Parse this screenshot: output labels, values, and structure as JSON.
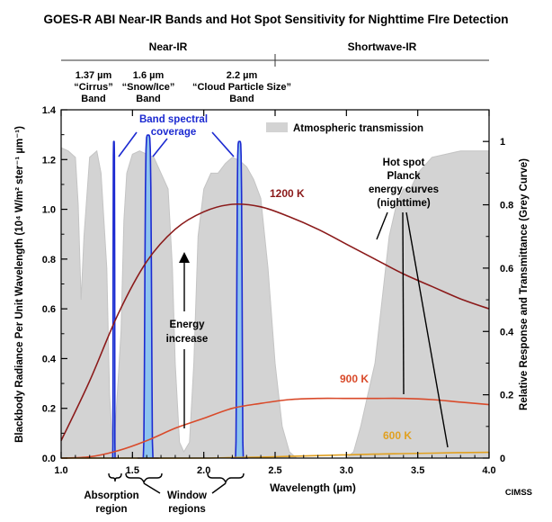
{
  "chart_data": {
    "type": "line",
    "title": "GOES-R ABI Near-IR Bands and Hot Spot Sensitivity for Nighttime FIre Detection",
    "xlabel": "Wavelength (µm)",
    "ylabel": "Blackbody Radiance Per Unit Wavelength (10⁴ W/m² ster⁻¹ µm⁻¹)",
    "y2label": "Relative Response and Transmittance (Grey Curve)",
    "xlim": [
      1.0,
      4.0
    ],
    "ylim": [
      0,
      1.4
    ],
    "y2lim": [
      0,
      1.1
    ],
    "x_ticks": [
      "1.0",
      "1.5",
      "2.0",
      "2.5",
      "3.0",
      "3.5",
      "4.0"
    ],
    "y_ticks": [
      "0.0",
      "0.2",
      "0.4",
      "0.6",
      "0.8",
      "1.0",
      "1.2",
      "1.4"
    ],
    "y2_ticks": [
      "0",
      "0.2",
      "0.4",
      "0.6",
      "0.8",
      "1"
    ],
    "regions": [
      {
        "label": "Near-IR",
        "x_range": [
          1.0,
          2.5
        ]
      },
      {
        "label": "Shortwave-IR",
        "x_range": [
          2.5,
          4.0
        ]
      }
    ],
    "bands": [
      {
        "center": 1.37,
        "label_value": "1.37 µm",
        "label_name": "“Cirrus”",
        "label_band": "Band",
        "peak": 1.0,
        "half_width": 0.006
      },
      {
        "center": 1.61,
        "label_value": "1.6 µm",
        "label_name": "“Snow/Ice”",
        "label_band": "Band",
        "peak": 1.02,
        "half_width": 0.025
      },
      {
        "center": 2.25,
        "label_value": "2.2 µm",
        "label_name": "“Cloud Particle Size”",
        "label_band": "Band",
        "peak": 1.0,
        "half_width": 0.02
      }
    ],
    "series": [
      {
        "name": "1200 K",
        "color": "#8b1a1a",
        "x": [
          1.0,
          1.2,
          1.4,
          1.6,
          1.8,
          2.0,
          2.2,
          2.4,
          2.6,
          2.8,
          3.0,
          3.2,
          3.4,
          3.6,
          3.8,
          4.0
        ],
        "values": [
          0.07,
          0.31,
          0.58,
          0.79,
          0.92,
          0.99,
          1.02,
          1.01,
          0.97,
          0.92,
          0.86,
          0.8,
          0.74,
          0.69,
          0.64,
          0.6
        ]
      },
      {
        "name": "900 K",
        "color": "#d94a2a",
        "x": [
          1.0,
          1.2,
          1.4,
          1.6,
          1.8,
          2.0,
          2.2,
          2.4,
          2.6,
          2.8,
          3.0,
          3.2,
          3.4,
          3.6,
          3.8,
          4.0
        ],
        "values": [
          0.0,
          0.005,
          0.03,
          0.07,
          0.12,
          0.16,
          0.2,
          0.22,
          0.235,
          0.24,
          0.24,
          0.24,
          0.24,
          0.235,
          0.225,
          0.215
        ]
      },
      {
        "name": "600 K",
        "color": "#e0a020",
        "x": [
          1.0,
          1.5,
          2.0,
          2.2,
          2.4,
          2.6,
          2.8,
          3.0,
          3.2,
          3.4,
          3.6,
          3.8,
          4.0
        ],
        "values": [
          0.0,
          0.0,
          0.0,
          0.002,
          0.004,
          0.007,
          0.01,
          0.013,
          0.016,
          0.018,
          0.02,
          0.022,
          0.023
        ]
      }
    ],
    "transmission": {
      "name": "Atmospheric transmission",
      "x": [
        1.0,
        1.05,
        1.1,
        1.12,
        1.14,
        1.16,
        1.2,
        1.25,
        1.28,
        1.32,
        1.34,
        1.36,
        1.38,
        1.42,
        1.44,
        1.46,
        1.5,
        1.55,
        1.6,
        1.65,
        1.7,
        1.75,
        1.78,
        1.8,
        1.83,
        1.86,
        1.9,
        1.93,
        1.96,
        2.0,
        2.05,
        2.1,
        2.15,
        2.2,
        2.25,
        2.3,
        2.35,
        2.4,
        2.45,
        2.5,
        2.55,
        2.6,
        2.65,
        2.7,
        2.75,
        2.8,
        2.85,
        2.9,
        2.95,
        3.0,
        3.05,
        3.1,
        3.15,
        3.2,
        3.25,
        3.3,
        3.35,
        3.4,
        3.45,
        3.5,
        3.6,
        3.7,
        3.8,
        3.9,
        4.0
      ],
      "values": [
        0.98,
        0.97,
        0.95,
        0.8,
        0.5,
        0.7,
        0.95,
        0.97,
        0.9,
        0.6,
        0.2,
        0.05,
        0.1,
        0.4,
        0.75,
        0.9,
        0.96,
        0.97,
        0.96,
        0.95,
        0.9,
        0.85,
        0.6,
        0.3,
        0.05,
        0.02,
        0.05,
        0.3,
        0.7,
        0.85,
        0.9,
        0.9,
        0.93,
        0.95,
        0.94,
        0.92,
        0.88,
        0.82,
        0.6,
        0.3,
        0.1,
        0.02,
        0.0,
        0.0,
        0.0,
        0.0,
        0.0,
        0.0,
        0.0,
        0.0,
        0.02,
        0.1,
        0.2,
        0.3,
        0.5,
        0.7,
        0.8,
        0.85,
        0.85,
        0.9,
        0.95,
        0.96,
        0.97,
        0.97,
        0.97
      ]
    },
    "annotations": {
      "band_spectral_line1": "Band spectral",
      "band_spectral_line2": "coverage",
      "energy_line1": "Energy",
      "energy_line2": "increase",
      "hotspot_line1": "Hot spot",
      "hotspot_line2": "Planck",
      "hotspot_line3": "energy curves",
      "hotspot_line4": "(nighttime)",
      "absorption_line1": "Absorption",
      "absorption_line2": "region",
      "window_line1": "Window",
      "window_line2": "regions",
      "credit": "CIMSS"
    },
    "colors": {
      "band_fill": "#8ec4ee",
      "band_stroke": "#1c2ad1",
      "annotation_blue": "#1c2ad1",
      "transmission": "#d3d3d3"
    }
  }
}
